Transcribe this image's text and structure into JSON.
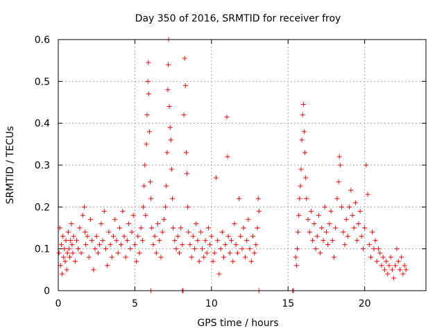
{
  "chart_data": {
    "type": "scatter",
    "title": "Day 350 of 2016, SRMTID for receiver froy",
    "xlabel": "GPS time / hours",
    "ylabel": "SRMTID / TECUs",
    "xlim": [
      0,
      24
    ],
    "ylim": [
      0,
      0.6
    ],
    "x_ticks": [
      0,
      5,
      10,
      15,
      20
    ],
    "x_tick_labels": [
      "0",
      "5",
      "10",
      "15",
      "20"
    ],
    "y_ticks": [
      0,
      0.1,
      0.2,
      0.3,
      0.4,
      0.5,
      0.6
    ],
    "y_tick_labels": [
      "0",
      "0.1",
      "0.2",
      "0.3",
      "0.4",
      "0.5",
      "0.6"
    ],
    "grid": true,
    "marker": "+",
    "colors": {
      "marker": "#ff0000",
      "grid": "#a0a0a0",
      "axis": "#000000"
    },
    "series": [
      {
        "name": "SRMTID",
        "points": [
          [
            0.05,
            0.09
          ],
          [
            0.1,
            0.15
          ],
          [
            0.15,
            0.06
          ],
          [
            0.2,
            0.11
          ],
          [
            0.25,
            0.04
          ],
          [
            0.3,
            0.13
          ],
          [
            0.35,
            0.08
          ],
          [
            0.4,
            0.1
          ],
          [
            0.45,
            0.07
          ],
          [
            0.5,
            0.12
          ],
          [
            0.55,
            0.05
          ],
          [
            0.6,
            0.09
          ],
          [
            0.65,
            0.14
          ],
          [
            0.7,
            0.1
          ],
          [
            0.75,
            0.08
          ],
          [
            0.8,
            0.12
          ],
          [
            0.85,
            0.16
          ],
          [
            0.9,
            0.11
          ],
          [
            0.95,
            0.09
          ],
          [
            1.0,
            0.13
          ],
          [
            1.1,
            0.07
          ],
          [
            1.2,
            0.12
          ],
          [
            1.3,
            0.1
          ],
          [
            1.4,
            0.15
          ],
          [
            1.5,
            0.09
          ],
          [
            1.6,
            0.18
          ],
          [
            1.7,
            0.2
          ],
          [
            1.75,
            0.14
          ],
          [
            1.8,
            0.11
          ],
          [
            1.9,
            0.13
          ],
          [
            2.0,
            0.08
          ],
          [
            2.1,
            0.17
          ],
          [
            2.2,
            0.12
          ],
          [
            2.3,
            0.05
          ],
          [
            2.4,
            0.1
          ],
          [
            2.5,
            0.13
          ],
          [
            2.6,
            0.09
          ],
          [
            2.7,
            0.11
          ],
          [
            2.8,
            0.16
          ],
          [
            2.9,
            0.12
          ],
          [
            3.0,
            0.19
          ],
          [
            3.1,
            0.1
          ],
          [
            3.2,
            0.06
          ],
          [
            3.3,
            0.14
          ],
          [
            3.4,
            0.11
          ],
          [
            3.5,
            0.08
          ],
          [
            3.6,
            0.13
          ],
          [
            3.7,
            0.17
          ],
          [
            3.8,
            0.12
          ],
          [
            3.9,
            0.09
          ],
          [
            4.0,
            0.15
          ],
          [
            4.1,
            0.11
          ],
          [
            4.2,
            0.19
          ],
          [
            4.3,
            0.13
          ],
          [
            4.4,
            0.08
          ],
          [
            4.5,
            0.12
          ],
          [
            4.6,
            0.16
          ],
          [
            4.7,
            0.1
          ],
          [
            4.8,
            0.14
          ],
          [
            4.9,
            0.18
          ],
          [
            5.0,
            0.11
          ],
          [
            5.1,
            0.07
          ],
          [
            5.2,
            0.13
          ],
          [
            5.3,
            0.09
          ],
          [
            5.4,
            0.15
          ],
          [
            5.5,
            0.12
          ],
          [
            5.55,
            0.2
          ],
          [
            5.6,
            0.25
          ],
          [
            5.65,
            0.3
          ],
          [
            5.7,
            0.18
          ],
          [
            5.75,
            0.35
          ],
          [
            5.8,
            0.42
          ],
          [
            5.85,
            0.5
          ],
          [
            5.88,
            0.545
          ],
          [
            5.9,
            0.47
          ],
          [
            5.95,
            0.38
          ],
          [
            6.0,
            0.26
          ],
          [
            6.05,
            0.22
          ],
          [
            6.1,
            0.15
          ],
          [
            6.2,
            0.11
          ],
          [
            6.3,
            0.13
          ],
          [
            6.4,
            0.09
          ],
          [
            6.5,
            0.16
          ],
          [
            6.6,
            0.12
          ],
          [
            6.7,
            0.08
          ],
          [
            6.8,
            0.14
          ],
          [
            6.9,
            0.17
          ],
          [
            7.0,
            0.2
          ],
          [
            7.05,
            0.25
          ],
          [
            7.1,
            0.33
          ],
          [
            7.15,
            0.48
          ],
          [
            7.18,
            0.54
          ],
          [
            7.2,
            0.6
          ],
          [
            7.25,
            0.44
          ],
          [
            7.3,
            0.39
          ],
          [
            7.35,
            0.36
          ],
          [
            7.4,
            0.29
          ],
          [
            7.45,
            0.22
          ],
          [
            7.5,
            0.15
          ],
          [
            7.6,
            0.12
          ],
          [
            7.7,
            0.1
          ],
          [
            7.8,
            0.13
          ],
          [
            7.9,
            0.09
          ],
          [
            8.0,
            0.15
          ],
          [
            8.1,
            0.11
          ],
          [
            8.2,
            0.42
          ],
          [
            8.25,
            0.555
          ],
          [
            8.3,
            0.49
          ],
          [
            8.35,
            0.33
          ],
          [
            8.4,
            0.28
          ],
          [
            8.45,
            0.2
          ],
          [
            8.5,
            0.14
          ],
          [
            8.6,
            0.11
          ],
          [
            8.7,
            0.08
          ],
          [
            8.8,
            0.13
          ],
          [
            8.9,
            0.1
          ],
          [
            9.0,
            0.16
          ],
          [
            9.1,
            0.12
          ],
          [
            9.2,
            0.07
          ],
          [
            9.3,
            0.14
          ],
          [
            9.4,
            0.1
          ],
          [
            9.5,
            0.08
          ],
          [
            9.6,
            0.12
          ],
          [
            9.7,
            0.09
          ],
          [
            9.8,
            0.15
          ],
          [
            9.9,
            0.11
          ],
          [
            10.0,
            0.13
          ],
          [
            10.1,
            0.07
          ],
          [
            10.2,
            0.09
          ],
          [
            10.3,
            0.27
          ],
          [
            10.4,
            0.12
          ],
          [
            10.5,
            0.04
          ],
          [
            10.6,
            0.1
          ],
          [
            10.7,
            0.14
          ],
          [
            10.8,
            0.08
          ],
          [
            10.9,
            0.11
          ],
          [
            11.0,
            0.415
          ],
          [
            11.05,
            0.32
          ],
          [
            11.1,
            0.13
          ],
          [
            11.2,
            0.09
          ],
          [
            11.3,
            0.12
          ],
          [
            11.4,
            0.07
          ],
          [
            11.5,
            0.16
          ],
          [
            11.6,
            0.11
          ],
          [
            11.7,
            0.09
          ],
          [
            11.8,
            0.22
          ],
          [
            11.9,
            0.13
          ],
          [
            12.0,
            0.1
          ],
          [
            12.1,
            0.15
          ],
          [
            12.2,
            0.08
          ],
          [
            12.3,
            0.12
          ],
          [
            12.4,
            0.17
          ],
          [
            12.5,
            0.1
          ],
          [
            12.6,
            0.07
          ],
          [
            12.7,
            0.13
          ],
          [
            12.8,
            0.09
          ],
          [
            12.9,
            0.11
          ],
          [
            13.0,
            0.15
          ],
          [
            13.05,
            0.22
          ],
          [
            13.1,
            0.19
          ],
          [
            15.5,
            0.08
          ],
          [
            15.55,
            0.06
          ],
          [
            15.6,
            0.1
          ],
          [
            15.65,
            0.14
          ],
          [
            15.7,
            0.18
          ],
          [
            15.75,
            0.22
          ],
          [
            15.8,
            0.25
          ],
          [
            15.85,
            0.29
          ],
          [
            15.9,
            0.36
          ],
          [
            15.95,
            0.42
          ],
          [
            16.0,
            0.445
          ],
          [
            16.05,
            0.38
          ],
          [
            16.1,
            0.33
          ],
          [
            16.15,
            0.27
          ],
          [
            16.2,
            0.22
          ],
          [
            16.3,
            0.17
          ],
          [
            16.4,
            0.14
          ],
          [
            16.5,
            0.19
          ],
          [
            16.6,
            0.12
          ],
          [
            16.7,
            0.16
          ],
          [
            16.8,
            0.1
          ],
          [
            16.9,
            0.13
          ],
          [
            17.0,
            0.18
          ],
          [
            17.1,
            0.09
          ],
          [
            17.2,
            0.15
          ],
          [
            17.3,
            0.12
          ],
          [
            17.4,
            0.2
          ],
          [
            17.5,
            0.14
          ],
          [
            17.6,
            0.11
          ],
          [
            17.7,
            0.16
          ],
          [
            17.8,
            0.19
          ],
          [
            17.9,
            0.12
          ],
          [
            18.0,
            0.08
          ],
          [
            18.1,
            0.15
          ],
          [
            18.2,
            0.22
          ],
          [
            18.3,
            0.26
          ],
          [
            18.35,
            0.32
          ],
          [
            18.4,
            0.3
          ],
          [
            18.5,
            0.2
          ],
          [
            18.6,
            0.14
          ],
          [
            18.7,
            0.11
          ],
          [
            18.8,
            0.17
          ],
          [
            18.9,
            0.13
          ],
          [
            19.0,
            0.2
          ],
          [
            19.1,
            0.24
          ],
          [
            19.2,
            0.18
          ],
          [
            19.3,
            0.15
          ],
          [
            19.4,
            0.21
          ],
          [
            19.5,
            0.12
          ],
          [
            19.6,
            0.16
          ],
          [
            19.7,
            0.19
          ],
          [
            19.8,
            0.13
          ],
          [
            19.9,
            0.1
          ],
          [
            20.0,
            0.15
          ],
          [
            20.1,
            0.3
          ],
          [
            20.2,
            0.23
          ],
          [
            20.3,
            0.11
          ],
          [
            20.4,
            0.08
          ],
          [
            20.5,
            0.14
          ],
          [
            20.6,
            0.1
          ],
          [
            20.7,
            0.12
          ],
          [
            20.8,
            0.07
          ],
          [
            20.9,
            0.1
          ],
          [
            21.0,
            0.09
          ],
          [
            21.1,
            0.06
          ],
          [
            21.2,
            0.08
          ],
          [
            21.3,
            0.05
          ],
          [
            21.4,
            0.07
          ],
          [
            21.5,
            0.04
          ],
          [
            21.6,
            0.06
          ],
          [
            21.7,
            0.08
          ],
          [
            21.8,
            0.05
          ],
          [
            21.9,
            0.03
          ],
          [
            22.0,
            0.06
          ],
          [
            22.1,
            0.1
          ],
          [
            22.2,
            0.07
          ],
          [
            22.3,
            0.05
          ],
          [
            22.4,
            0.08
          ],
          [
            22.5,
            0.04
          ],
          [
            22.6,
            0.06
          ],
          [
            22.7,
            0.05
          ],
          [
            6.05,
            0.0
          ],
          [
            8.1,
            0.0
          ],
          [
            8.15,
            0.0
          ],
          [
            13.1,
            0.0
          ],
          [
            15.3,
            0.0
          ],
          [
            15.35,
            0.0
          ]
        ]
      }
    ]
  }
}
